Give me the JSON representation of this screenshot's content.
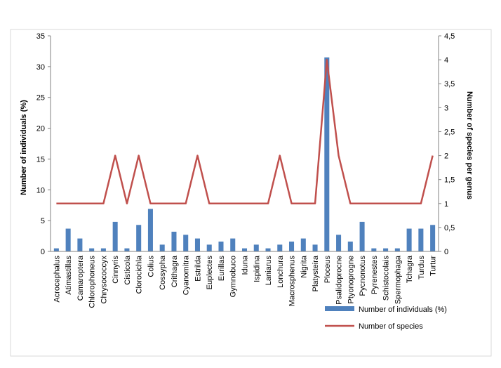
{
  "chart_data": {
    "type": "bar",
    "title": "",
    "categories": [
      "Acrocephalus",
      "Atimastillas",
      "Camaroptera",
      "Chlorophoneus",
      "Chrysococcyx",
      "Cinnyris",
      "Cisticola",
      "Clorocichla",
      "Colius",
      "Cossypha",
      "Crithagra",
      "Cyanomitra",
      "Estrilda",
      "Euplectes",
      "Eurillas",
      "Gymnobuco",
      "Iduna",
      "Ispidina",
      "Laniarus",
      "Lonchura",
      "Macrosphenus",
      "Nigrita",
      "Platysteira",
      "Ploceus",
      "Psalidoprocne",
      "Ptyonoprogne",
      "Pycnonotus",
      "Pyrenestes",
      "Schistocolais",
      "Spermophaga",
      "Tchagra",
      "Turdus",
      "Turtur"
    ],
    "series": [
      {
        "name": "Number of individuals (%)",
        "type": "bar",
        "axis": "left",
        "color": "#4f81bd",
        "values": [
          0.5,
          3.7,
          2.1,
          0.5,
          0.5,
          4.8,
          0.5,
          4.3,
          6.9,
          1.1,
          3.2,
          2.7,
          2.1,
          1.1,
          1.6,
          2.1,
          0.5,
          1.1,
          0.5,
          1.1,
          1.6,
          2.1,
          1.1,
          31.5,
          2.7,
          1.6,
          4.8,
          0.5,
          0.5,
          0.5,
          3.7,
          3.7,
          4.3
        ]
      },
      {
        "name": "Number of species",
        "type": "line",
        "axis": "right",
        "color": "#c0504d",
        "values": [
          1,
          1,
          1,
          1,
          1,
          2,
          1,
          2,
          1,
          1,
          1,
          1,
          2,
          1,
          1,
          1,
          1,
          1,
          1,
          2,
          1,
          1,
          1,
          4,
          2,
          1,
          1,
          1,
          1,
          1,
          1,
          1,
          2
        ]
      }
    ],
    "ylabel": "Number of individuals (%)",
    "y2label": "Number of species per genus",
    "ylim": [
      0,
      35
    ],
    "y2lim": [
      0,
      4.5
    ],
    "yticks": [
      "0",
      "5",
      "10",
      "15",
      "20",
      "25",
      "30",
      "35"
    ],
    "y2ticks": [
      "0",
      "0,5",
      "1",
      "1,5",
      "2",
      "2,5",
      "3",
      "3,5",
      "4",
      "4,5"
    ],
    "grid": false,
    "legend_position": "bottom-right"
  }
}
